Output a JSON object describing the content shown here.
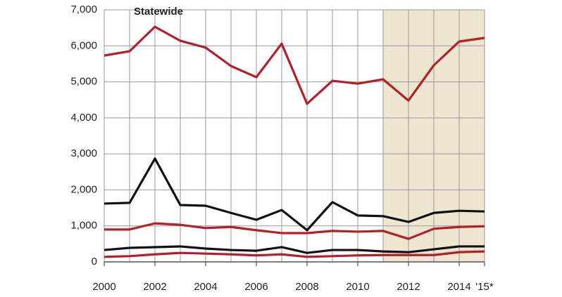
{
  "chart_data": {
    "type": "line",
    "annotation": "Statewide",
    "x": [
      2000,
      2001,
      2002,
      2003,
      2004,
      2005,
      2006,
      2007,
      2008,
      2009,
      2010,
      2011,
      2012,
      2013,
      2014,
      2015
    ],
    "xlim": [
      2000,
      2015
    ],
    "xticks": [
      2000,
      2002,
      2004,
      2006,
      2008,
      2010,
      2012,
      2014,
      {
        "value": 2015,
        "label": "'15*"
      }
    ],
    "ylim": [
      0,
      7000
    ],
    "yticks": [
      0,
      {
        "value": 1000,
        "label": "1,000"
      },
      {
        "value": 2000,
        "label": "2,000"
      },
      {
        "value": 3000,
        "label": "3,000"
      },
      {
        "value": 4000,
        "label": "4,000"
      },
      {
        "value": 5000,
        "label": "5,000"
      },
      {
        "value": 6000,
        "label": "6,000"
      },
      {
        "value": 7000,
        "label": "7,000"
      }
    ],
    "grid": true,
    "highlight_xrange": [
      2011,
      2015
    ],
    "highlight_color": "#efe6d2",
    "series": [
      {
        "color": "#b3202c",
        "values": [
          5730,
          5850,
          6530,
          6140,
          5950,
          5440,
          5130,
          6060,
          4390,
          5030,
          4950,
          5070,
          4480,
          5460,
          6120,
          6220
        ]
      },
      {
        "color": "#111111",
        "values": [
          1620,
          1640,
          2870,
          1580,
          1560,
          1360,
          1170,
          1440,
          880,
          1660,
          1290,
          1270,
          1110,
          1360,
          1420,
          1400
        ]
      },
      {
        "color": "#b3202c",
        "values": [
          900,
          900,
          1070,
          1030,
          940,
          970,
          880,
          800,
          800,
          860,
          840,
          860,
          640,
          920,
          970,
          990
        ]
      },
      {
        "color": "#111111",
        "values": [
          330,
          390,
          410,
          430,
          370,
          330,
          310,
          410,
          250,
          330,
          330,
          290,
          270,
          350,
          430,
          430
        ]
      },
      {
        "color": "#b3202c",
        "values": [
          140,
          160,
          210,
          250,
          230,
          210,
          180,
          210,
          140,
          160,
          180,
          190,
          190,
          190,
          270,
          290
        ]
      }
    ]
  }
}
